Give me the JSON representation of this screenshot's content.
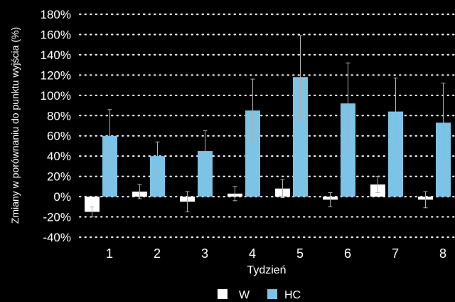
{
  "chart_data": {
    "type": "bar",
    "xlabel": "Tydzień",
    "ylabel": "Zmiany w porównaniu do punktu wyjścia (%)",
    "categories": [
      "1",
      "2",
      "3",
      "4",
      "5",
      "6",
      "7",
      "8"
    ],
    "ylim": [
      -40,
      180
    ],
    "yticks": [
      -40,
      -20,
      0,
      20,
      40,
      60,
      80,
      100,
      120,
      140,
      160,
      180
    ],
    "ytick_labels": [
      "-40%",
      "-20%",
      "0%",
      "20%",
      "40%",
      "60%",
      "80%",
      "100%",
      "120%",
      "140%",
      "160%",
      "180%"
    ],
    "grid": "dotted horizontal",
    "legend_position": "bottom",
    "series": [
      {
        "name": "W",
        "color": "#ffffff",
        "values": [
          -15,
          5,
          -5,
          3,
          8,
          -3,
          12,
          -3
        ],
        "error": [
          5,
          7,
          10,
          7,
          9,
          7,
          8,
          8
        ]
      },
      {
        "name": "HC",
        "color": "#7cc3e6",
        "values": [
          60,
          40,
          45,
          85,
          118,
          92,
          84,
          73
        ],
        "error": [
          26,
          14,
          20,
          31,
          41,
          40,
          33,
          39
        ]
      }
    ]
  }
}
